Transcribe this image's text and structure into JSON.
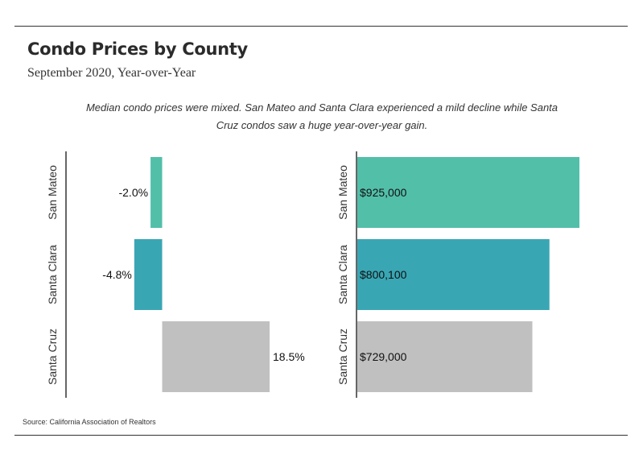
{
  "title": "Condo Prices by County",
  "subtitle": "September 2020, Year-over-Year",
  "note_line1": "Median condo prices were mixed. San Mateo and Santa Clara experienced a mild decline while Santa",
  "note_line2": "Cruz condos saw a huge year-over-year gain.",
  "source": "Source:  California Association of Realtors",
  "colors": {
    "san_mateo": "#52bfa9",
    "santa_clara": "#39a6b4",
    "santa_cruz": "#c0c0c0"
  },
  "chart_data": [
    {
      "type": "bar",
      "orientation": "horizontal",
      "categories": [
        "San Mateo",
        "Santa Clara",
        "Santa Cruz"
      ],
      "values": [
        -2.0,
        -4.8,
        18.5
      ],
      "value_labels": [
        "-2.0%",
        "-4.8%",
        "18.5%"
      ],
      "xlim": [
        -4.8,
        18.5
      ]
    },
    {
      "type": "bar",
      "orientation": "horizontal",
      "categories": [
        "San Mateo",
        "Santa Clara",
        "Santa Cruz"
      ],
      "values": [
        925000,
        800100,
        729000
      ],
      "value_labels": [
        "$925,000",
        "$800,100",
        "$729,000"
      ],
      "xlim": [
        0,
        925000
      ]
    }
  ]
}
